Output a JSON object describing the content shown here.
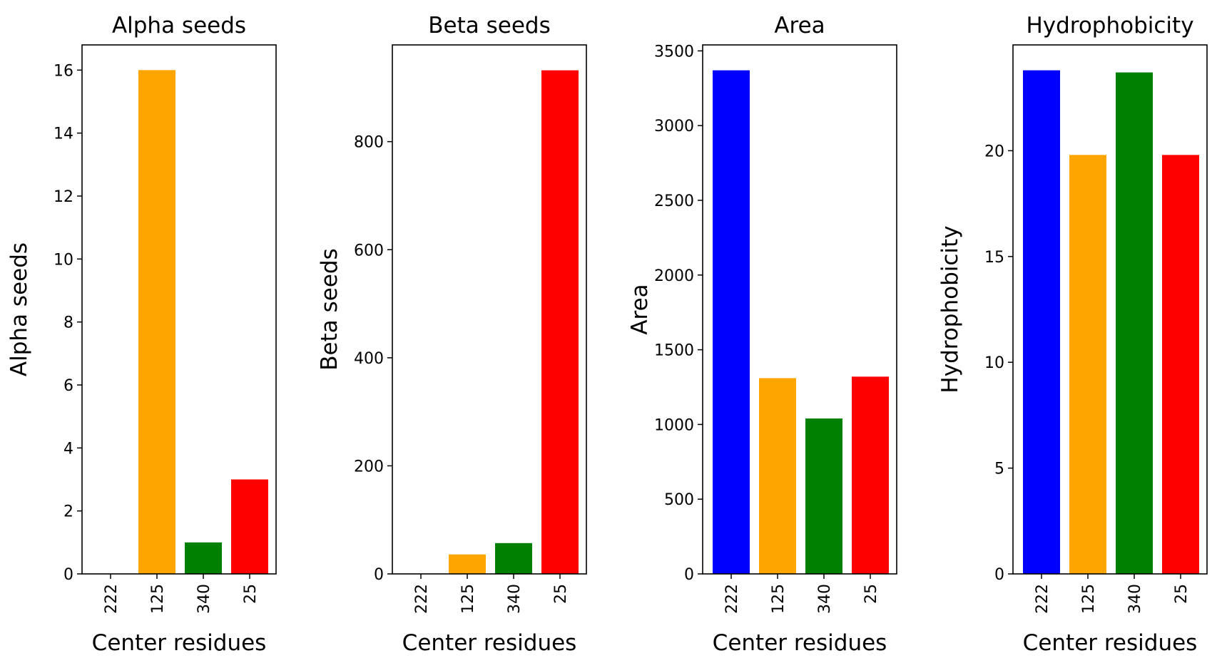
{
  "chart_data": [
    {
      "type": "bar",
      "title": "Alpha seeds",
      "xlabel": "Center residues",
      "ylabel": "Alpha seeds",
      "categories": [
        "222",
        "125",
        "340",
        "25"
      ],
      "values": [
        0,
        16,
        1,
        3
      ],
      "ylim": [
        0,
        16.8
      ],
      "yticks": [
        0,
        2,
        4,
        6,
        8,
        10,
        12,
        14,
        16
      ],
      "grid": false
    },
    {
      "type": "bar",
      "title": "Beta seeds",
      "xlabel": "Center residues",
      "ylabel": "Beta seeds",
      "categories": [
        "222",
        "125",
        "340",
        "25"
      ],
      "values": [
        0,
        36,
        57,
        932
      ],
      "ylim": [
        0,
        979
      ],
      "yticks": [
        0,
        200,
        400,
        600,
        800
      ],
      "grid": false
    },
    {
      "type": "bar",
      "title": "Area",
      "xlabel": "Center residues",
      "ylabel": "Area",
      "categories": [
        "222",
        "125",
        "340",
        "25"
      ],
      "values": [
        3370,
        1310,
        1040,
        1320
      ],
      "ylim": [
        0,
        3540
      ],
      "yticks": [
        0,
        500,
        1000,
        1500,
        2000,
        2500,
        3000,
        3500
      ],
      "grid": false
    },
    {
      "type": "bar",
      "title": "Hydrophobicity",
      "xlabel": "Center residues",
      "ylabel": "Hydrophobicity",
      "categories": [
        "222",
        "125",
        "340",
        "25"
      ],
      "values": [
        23.8,
        19.8,
        23.7,
        19.8
      ],
      "ylim": [
        0,
        25
      ],
      "yticks": [
        0,
        5,
        10,
        15,
        20
      ],
      "grid": false
    }
  ],
  "colors": {
    "bars": [
      "#0000ff",
      "#ffa500",
      "#008000",
      "#ff0000"
    ],
    "axes": "#000000",
    "background": "#ffffff"
  }
}
